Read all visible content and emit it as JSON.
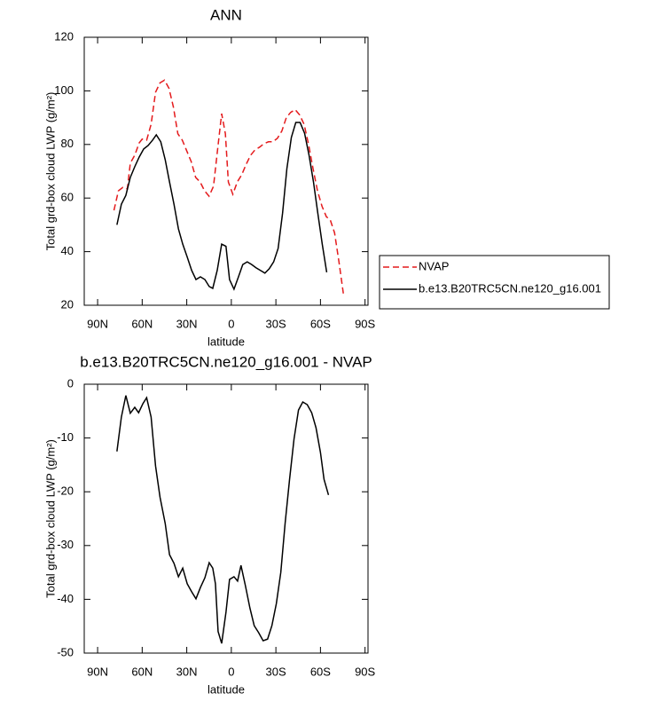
{
  "chart_data": [
    {
      "type": "line",
      "title": "ANN",
      "xlabel": "latitude",
      "ylabel": "Total grd-box cloud LWP (g/m²)",
      "xlim": [
        99,
        -92
      ],
      "ylim": [
        20,
        120
      ],
      "xticks": [
        {
          "value": 90,
          "label": "90N"
        },
        {
          "value": 60,
          "label": "60N"
        },
        {
          "value": 30,
          "label": "30N"
        },
        0,
        {
          "value": -30,
          "label": "30S"
        },
        {
          "value": -60,
          "label": "60S"
        },
        {
          "value": -90,
          "label": "90S"
        }
      ],
      "yticks": [
        20,
        40,
        60,
        80,
        100,
        120
      ],
      "legend": "right",
      "series": [
        {
          "name": "NVAP",
          "color": "#e41a1c",
          "dashed": true,
          "x": [
            79,
            76,
            73,
            70,
            68,
            65,
            62,
            60,
            57,
            54,
            51,
            48,
            45,
            42,
            39,
            36,
            33,
            30,
            27,
            24,
            21,
            18,
            15,
            12,
            9,
            6.5,
            4,
            2,
            -1,
            -4,
            -7,
            -10,
            -13,
            -16,
            -19,
            -22,
            -25,
            -28,
            -31,
            -34,
            -37,
            -40,
            -43,
            -46,
            -49,
            -52,
            -55,
            -58,
            -61,
            -64,
            -66.5,
            -69.5,
            -72.5,
            -75.5
          ],
          "values": [
            55.4,
            62.7,
            64,
            63.4,
            73,
            76,
            80.6,
            82,
            81.6,
            87.5,
            99.5,
            103,
            104,
            101,
            94,
            84,
            81.6,
            77.6,
            73.6,
            67.7,
            66,
            62.7,
            60.7,
            64.4,
            79.3,
            91.5,
            84,
            66,
            61.4,
            66,
            68.7,
            72.6,
            76,
            78,
            79,
            80.3,
            81,
            81,
            82.3,
            85,
            90,
            92,
            93,
            91,
            87.5,
            80,
            71,
            62.7,
            57,
            53,
            52,
            47,
            36,
            24
          ]
        },
        {
          "name": "b.e13.B20TRC5CN.ne120_g16.001",
          "color": "#000000",
          "dashed": false,
          "x": [
            77,
            74,
            71,
            68,
            65,
            62,
            59,
            56,
            53,
            50.5,
            47.5,
            44.5,
            41.6,
            38.6,
            35.6,
            32.7,
            29.7,
            26.7,
            23.8,
            20.8,
            17.8,
            14.9,
            12.5,
            9.5,
            6.5,
            3.6,
            1.2,
            -1.8,
            -4.8,
            -7.7,
            -10.7,
            -13.7,
            -16.6,
            -19.6,
            -22.6,
            -25.5,
            -28.5,
            -31.5,
            -34.5,
            -37.4,
            -40.4,
            -43.4,
            -46.3,
            -49.3,
            -52.3,
            -55.3,
            -58.2,
            -61.2,
            -64.2
          ],
          "values": [
            50,
            57.7,
            61,
            67.7,
            71.7,
            75.3,
            78.3,
            79.6,
            81.6,
            83.6,
            81,
            74.3,
            66,
            57.7,
            48.5,
            42.8,
            38,
            33,
            29.6,
            30.6,
            29.6,
            27,
            26.3,
            33,
            42.8,
            42,
            29.6,
            26,
            30.6,
            35.2,
            36.2,
            35.2,
            34,
            33,
            32,
            33.6,
            36.2,
            41.2,
            54.4,
            71,
            82.6,
            88.2,
            88.2,
            84.2,
            76,
            66,
            54.4,
            42.8,
            32.3
          ]
        }
      ]
    },
    {
      "type": "line",
      "title": "b.e13.B20TRC5CN.ne120_g16.001 - NVAP",
      "xlabel": "latitude",
      "ylabel": "Total grd-box cloud LWP (g/m²)",
      "xlim": [
        99,
        -92
      ],
      "ylim": [
        -50,
        0
      ],
      "xticks": [
        {
          "value": 90,
          "label": "90N"
        },
        {
          "value": 60,
          "label": "60N"
        },
        {
          "value": 30,
          "label": "30N"
        },
        0,
        {
          "value": -30,
          "label": "30S"
        },
        {
          "value": -60,
          "label": "60S"
        },
        {
          "value": -90,
          "label": "90S"
        }
      ],
      "yticks": [
        -50,
        -40,
        -30,
        -20,
        -10,
        0
      ],
      "series": [
        {
          "color": "#000000",
          "dashed": false,
          "x": [
            77,
            74,
            71,
            68,
            65,
            62.4,
            59.5,
            57,
            54,
            51,
            48,
            44.5,
            41.6,
            38.6,
            35.6,
            32.7,
            29.7,
            26.7,
            23.8,
            20.8,
            17.8,
            14.9,
            12.5,
            10.7,
            8.9,
            6.5,
            3.6,
            1.2,
            -1.8,
            -4.2,
            -6.5,
            -9.5,
            -12.5,
            -15.4,
            -18.4,
            -21.4,
            -24.4,
            -27.3,
            -30.3,
            -33.3,
            -36.2,
            -39.2,
            -42.2,
            -45.2,
            -48.1,
            -51.1,
            -54.1,
            -57,
            -60,
            -62.4,
            -65.4
          ],
          "values": [
            -12.5,
            -6.1,
            -2.1,
            -5.4,
            -4.3,
            -5.3,
            -3.6,
            -2.5,
            -6.1,
            -15.2,
            -21,
            -25.9,
            -31.7,
            -33.3,
            -35.8,
            -34.2,
            -37.1,
            -38.6,
            -39.9,
            -37.8,
            -36,
            -33.2,
            -34.2,
            -37.1,
            -46,
            -48.2,
            -42.4,
            -36.3,
            -35.8,
            -36.6,
            -33.7,
            -37.5,
            -41.6,
            -44.9,
            -46.2,
            -47.7,
            -47.4,
            -44.9,
            -40.8,
            -35,
            -25.9,
            -17.7,
            -10.2,
            -4.8,
            -3.3,
            -3.8,
            -5.3,
            -8.1,
            -12.7,
            -17.7,
            -20.6
          ]
        }
      ]
    }
  ]
}
